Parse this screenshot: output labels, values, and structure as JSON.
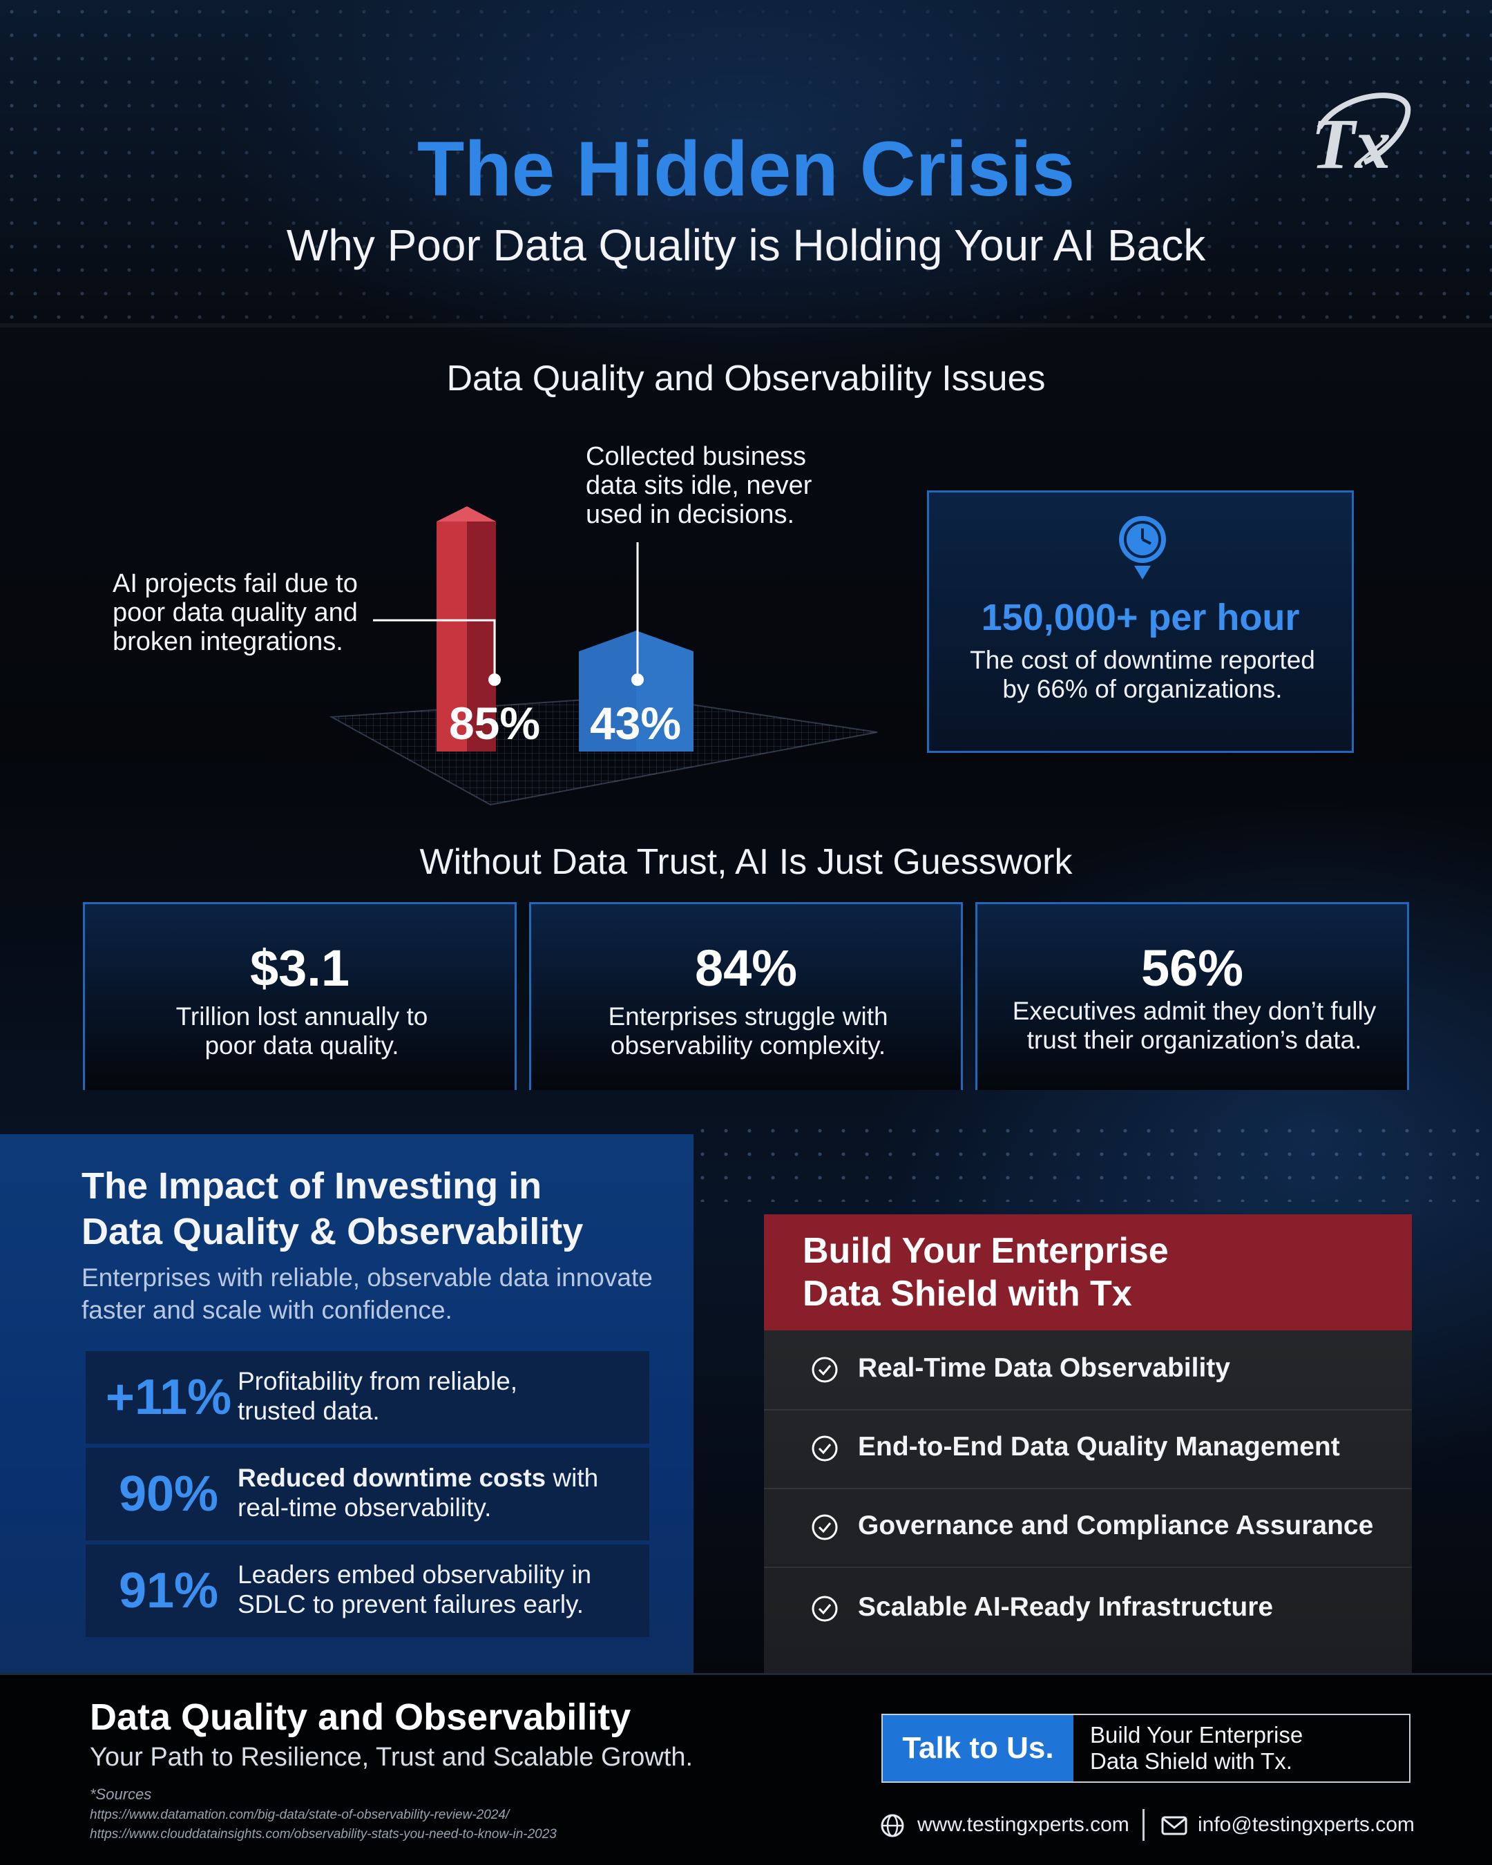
{
  "header": {
    "title": "The Hidden Crisis",
    "subtitle": "Why Poor Data Quality is Holding Your AI Back",
    "logo_text": "Tx"
  },
  "issues": {
    "title": "Data Quality and Observability Issues",
    "bar_red": {
      "value": 85,
      "label": "85%",
      "note": [
        "AI projects fail due to",
        "poor data quality and",
        "broken integrations."
      ]
    },
    "bar_blue": {
      "value": 43,
      "label": "43%",
      "note": [
        "Collected business",
        "data sits idle, never",
        "used in decisions."
      ]
    },
    "downtime": {
      "icon": "clock-download-icon",
      "value": "150,000+ per hour",
      "text": [
        "The cost of downtime reported",
        "by 66% of organizations."
      ]
    }
  },
  "trust": {
    "title": "Without Data Trust, AI Is Just Guesswork",
    "cards": [
      {
        "value": "$3.1",
        "text": [
          "Trillion lost annually to",
          "poor data quality."
        ]
      },
      {
        "value": "84%",
        "text": [
          "Enterprises struggle with",
          "observability complexity."
        ]
      },
      {
        "value": "56%",
        "text": [
          "Executives admit they don’t fully",
          "trust their organization’s data."
        ]
      }
    ]
  },
  "impact": {
    "title": [
      "The Impact of Investing in",
      "Data Quality & Observability"
    ],
    "desc": "Enterprises with reliable, observable data innovate faster and scale with confidence.",
    "rows": [
      {
        "value": "+11%",
        "text_bold": "",
        "text": [
          "Profitability from reliable,",
          "trusted data."
        ]
      },
      {
        "value": "90%",
        "text_bold": "Reduced downtime costs",
        "text": [
          " with",
          "real-time observability."
        ]
      },
      {
        "value": "91%",
        "text_bold": "",
        "text": [
          "Leaders embed observability in",
          "SDLC to prevent failures early."
        ]
      }
    ]
  },
  "shield": {
    "title": [
      "Build Your Enterprise",
      "Data Shield with Tx"
    ],
    "items": [
      "Real-Time Data Observability",
      "End-to-End Data Quality Management",
      "Governance and Compliance Assurance",
      "Scalable AI-Ready Infrastructure"
    ]
  },
  "footer": {
    "title": "Data Quality and Observability",
    "subtitle": "Your Path to Resilience, Trust and Scalable Growth.",
    "sources_heading": "*Sources",
    "sources": [
      "https://www.datamation.com/big-data/state-of-observability-review-2024/",
      "https://www.clouddatainsights.com/observability-stats-you-need-to-know-in-2023"
    ],
    "cta_button": "Talk to Us.",
    "cta_text": [
      "Build Your Enterprise",
      "Data Shield with Tx."
    ],
    "website": "www.testingxperts.com",
    "email": "info@testingxperts.com"
  },
  "colors": {
    "accent_blue": "#2f86e6",
    "bar_red": "#c7353f",
    "bar_blue": "#2c6fc0",
    "shield_red": "#8a1f2c"
  }
}
